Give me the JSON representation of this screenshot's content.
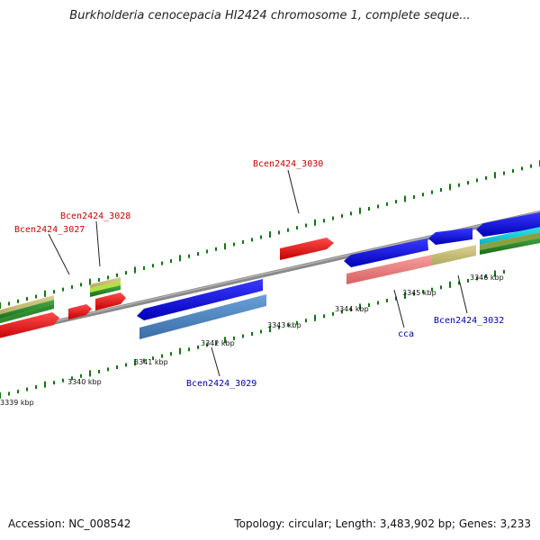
{
  "title": "Burkholderia cenocepacia HI2424 chromosome 1, complete seque...",
  "footer": {
    "accession": "Accession: NC_008542",
    "stats": "Topology: circular; Length: 3,483,902 bp; Genes: 3,233"
  },
  "ticks": [
    "3339 kbp",
    "3340 kbp",
    "3341 kbp",
    "3342 kbp",
    "3343 kbp",
    "3344 kbp",
    "3345 kbp",
    "3346 kbp"
  ],
  "genes_forward": [
    "Bcen2424_3027",
    "Bcen2424_3028",
    "Bcen2424_3030"
  ],
  "genes_reverse": [
    "Bcen2424_3029",
    "cca",
    "Bcen2424_3032"
  ],
  "colors": {
    "forward_label": "#cc0000",
    "reverse_label": "#0000aa",
    "cds_forward": "#ee0000",
    "cds_reverse": "#0000ee",
    "tick": "#117711",
    "backbone": "#888888"
  }
}
